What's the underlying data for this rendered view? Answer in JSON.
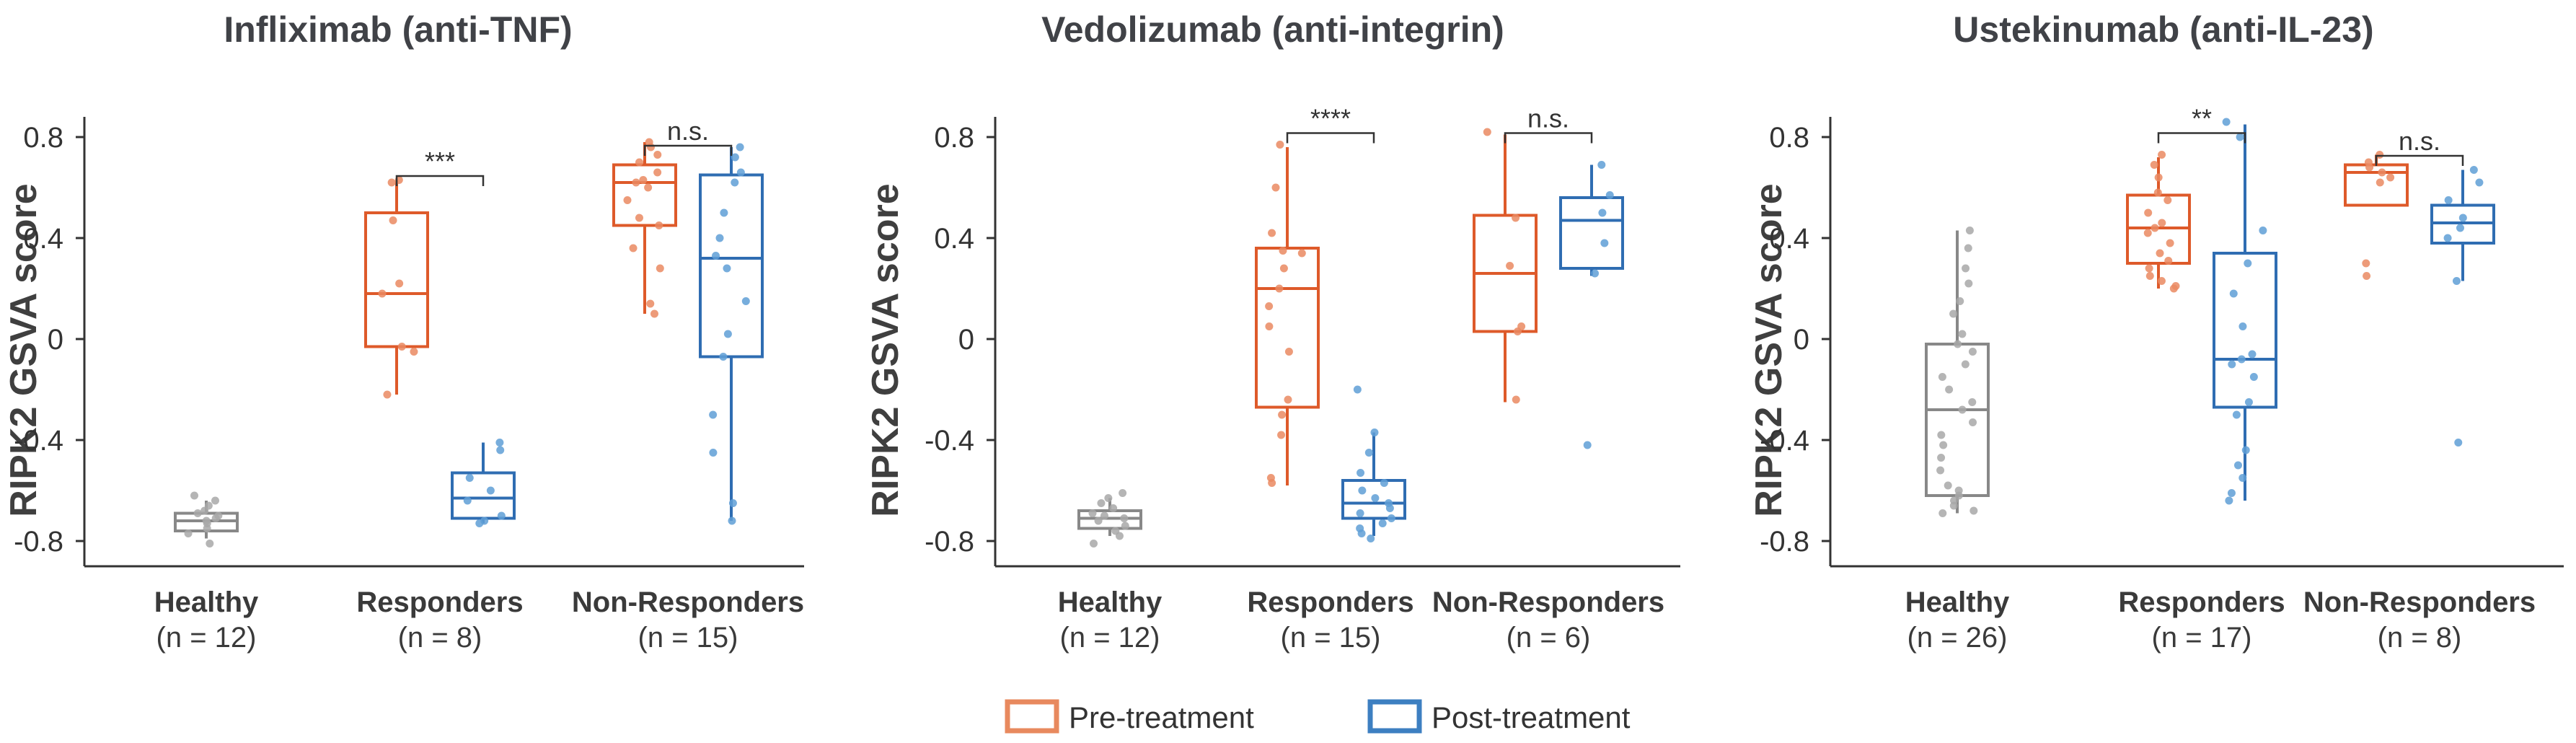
{
  "colors": {
    "healthy": "#888888",
    "pre": "#de5a2a",
    "post": "#2f6db2",
    "pre_dot": "#ea8a62",
    "post_dot": "#5f9fd6",
    "healthy_dot": "#a8a8a8",
    "axis": "#333333"
  },
  "legend": {
    "items": [
      {
        "label": "Pre-treatment",
        "color": "#e8895e"
      },
      {
        "label": "Post-treatment",
        "color": "#3d7fc1"
      }
    ]
  },
  "chart_data": [
    {
      "type": "box",
      "title": "Infliximab (anti-TNF)",
      "ylabel": "RIPK2 GSVA score",
      "ylim": [
        -0.9,
        0.88
      ],
      "yticks": [
        "-0.8",
        "-0.4",
        "0",
        "0.4",
        "0.8"
      ],
      "ytick_values": [
        -0.8,
        -0.4,
        0,
        0.4,
        0.8
      ],
      "categories": [
        {
          "name": "Healthy",
          "n": "(n = 12)"
        },
        {
          "name": "Responders",
          "n": "(n = 8)"
        },
        {
          "name": "Non-Responders",
          "n": "(n = 15)"
        }
      ],
      "boxes": [
        {
          "group": 0,
          "series": "healthy",
          "q1": -0.76,
          "median": -0.72,
          "q3": -0.69,
          "whislo": -0.79,
          "whishi": -0.64,
          "points": [
            -0.62,
            -0.64,
            -0.66,
            -0.68,
            -0.69,
            -0.7,
            -0.71,
            -0.72,
            -0.73,
            -0.75,
            -0.77,
            -0.81
          ]
        },
        {
          "group": 1,
          "series": "pre",
          "q1": -0.03,
          "median": 0.18,
          "q3": 0.5,
          "whislo": -0.22,
          "whishi": 0.63,
          "points": [
            0.63,
            0.62,
            0.47,
            0.22,
            0.18,
            -0.03,
            -0.05,
            -0.22
          ]
        },
        {
          "group": 1,
          "series": "post",
          "q1": -0.71,
          "median": -0.63,
          "q3": -0.53,
          "whislo": -0.73,
          "whishi": -0.41,
          "points": [
            -0.41,
            -0.44,
            -0.55,
            -0.6,
            -0.64,
            -0.7,
            -0.72,
            -0.73
          ]
        },
        {
          "group": 2,
          "series": "pre",
          "q1": 0.45,
          "median": 0.62,
          "q3": 0.69,
          "whislo": 0.1,
          "whishi": 0.78,
          "points": [
            0.78,
            0.76,
            0.73,
            0.7,
            0.66,
            0.63,
            0.62,
            0.6,
            0.55,
            0.48,
            0.45,
            0.36,
            0.28,
            0.14,
            0.1
          ]
        },
        {
          "group": 2,
          "series": "post",
          "q1": -0.07,
          "median": 0.32,
          "q3": 0.65,
          "whislo": -0.72,
          "whishi": 0.76,
          "points": [
            0.76,
            0.72,
            0.66,
            0.62,
            0.5,
            0.4,
            0.33,
            0.28,
            0.15,
            0.02,
            -0.07,
            -0.3,
            -0.45,
            -0.65,
            -0.72
          ]
        }
      ],
      "annotations": [
        {
          "text": "***",
          "group": 1,
          "y": 0.76
        },
        {
          "text": "n.s.",
          "group": 2,
          "y": 0.88
        }
      ]
    },
    {
      "type": "box",
      "title": "Vedolizumab (anti-integrin)",
      "ylabel": "RIPK2 GSVA score",
      "ylim": [
        -0.9,
        0.88
      ],
      "yticks": [
        "-0.8",
        "-0.4",
        "0",
        "0.4",
        "0.8"
      ],
      "ytick_values": [
        -0.8,
        -0.4,
        0,
        0.4,
        0.8
      ],
      "categories": [
        {
          "name": "Healthy",
          "n": "(n = 12)"
        },
        {
          "name": "Responders",
          "n": "(n = 15)"
        },
        {
          "name": "Non-Responders",
          "n": "(n = 6)"
        }
      ],
      "boxes": [
        {
          "group": 0,
          "series": "healthy",
          "q1": -0.75,
          "median": -0.71,
          "q3": -0.68,
          "whislo": -0.78,
          "whishi": -0.63,
          "points": [
            -0.61,
            -0.63,
            -0.65,
            -0.67,
            -0.69,
            -0.7,
            -0.71,
            -0.72,
            -0.74,
            -0.76,
            -0.78,
            -0.81
          ]
        },
        {
          "group": 1,
          "series": "pre",
          "q1": -0.27,
          "median": 0.2,
          "q3": 0.36,
          "whislo": -0.58,
          "whishi": 0.76,
          "points": [
            0.77,
            0.6,
            0.42,
            0.35,
            0.34,
            0.28,
            0.2,
            0.13,
            0.05,
            -0.05,
            -0.24,
            -0.3,
            -0.38,
            -0.55,
            -0.57
          ]
        },
        {
          "group": 1,
          "series": "post",
          "q1": -0.71,
          "median": -0.65,
          "q3": -0.56,
          "whislo": -0.78,
          "whishi": -0.37,
          "points": [
            -0.2,
            -0.37,
            -0.45,
            -0.53,
            -0.57,
            -0.6,
            -0.63,
            -0.65,
            -0.67,
            -0.69,
            -0.71,
            -0.73,
            -0.75,
            -0.77,
            -0.79
          ]
        },
        {
          "group": 2,
          "series": "pre",
          "q1": 0.03,
          "median": 0.26,
          "q3": 0.49,
          "whislo": -0.25,
          "whishi": 0.81,
          "points": [
            0.82,
            0.48,
            0.29,
            0.05,
            0.03,
            -0.24
          ]
        },
        {
          "group": 2,
          "series": "post",
          "q1": 0.28,
          "median": 0.47,
          "q3": 0.56,
          "whislo": 0.25,
          "whishi": 0.69,
          "points": [
            0.69,
            0.57,
            0.5,
            0.38,
            0.26,
            -0.42
          ]
        }
      ],
      "annotations": [
        {
          "text": "****",
          "group": 1,
          "y": 0.93
        },
        {
          "text": "n.s.",
          "group": 2,
          "y": 0.93
        }
      ]
    },
    {
      "type": "box",
      "title": "Ustekinumab (anti-IL-23)",
      "ylabel": "RIPK2 GSVA score",
      "ylim": [
        -0.9,
        0.88
      ],
      "yticks": [
        "-0.8",
        "-0.4",
        "0",
        "0.4",
        "0.8"
      ],
      "ytick_values": [
        -0.8,
        -0.4,
        0,
        0.4,
        0.8
      ],
      "categories": [
        {
          "name": "Healthy",
          "n": "(n = 26)"
        },
        {
          "name": "Responders",
          "n": "(n = 17)"
        },
        {
          "name": "Non-Responders",
          "n": "(n = 8)"
        }
      ],
      "boxes": [
        {
          "group": 0,
          "series": "healthy",
          "q1": -0.62,
          "median": -0.28,
          "q3": -0.02,
          "whislo": -0.69,
          "whishi": 0.43,
          "points": [
            0.43,
            0.36,
            0.28,
            0.22,
            0.15,
            0.1,
            0.02,
            -0.02,
            -0.05,
            -0.1,
            -0.15,
            -0.2,
            -0.25,
            -0.28,
            -0.33,
            -0.38,
            -0.42,
            -0.47,
            -0.52,
            -0.58,
            -0.6,
            -0.62,
            -0.64,
            -0.66,
            -0.68,
            -0.69
          ]
        },
        {
          "group": 1,
          "series": "pre",
          "q1": 0.3,
          "median": 0.44,
          "q3": 0.57,
          "whislo": 0.2,
          "whishi": 0.72,
          "points": [
            0.73,
            0.69,
            0.64,
            0.58,
            0.55,
            0.5,
            0.46,
            0.44,
            0.42,
            0.38,
            0.34,
            0.31,
            0.28,
            0.25,
            0.23,
            0.21,
            0.2
          ]
        },
        {
          "group": 1,
          "series": "post",
          "q1": -0.27,
          "median": -0.08,
          "q3": 0.34,
          "whislo": -0.64,
          "whishi": 0.85,
          "points": [
            0.86,
            0.8,
            0.43,
            0.3,
            0.18,
            0.05,
            -0.06,
            -0.08,
            -0.1,
            -0.15,
            -0.25,
            -0.3,
            -0.44,
            -0.5,
            -0.55,
            -0.61,
            -0.64
          ]
        },
        {
          "group": 2,
          "series": "pre",
          "q1": 0.53,
          "median": 0.66,
          "q3": 0.69,
          "whislo": 0.53,
          "whishi": 0.73,
          "points": [
            0.73,
            0.7,
            0.68,
            0.66,
            0.64,
            0.62,
            0.3,
            0.25
          ]
        },
        {
          "group": 2,
          "series": "post",
          "q1": 0.38,
          "median": 0.46,
          "q3": 0.53,
          "whislo": 0.23,
          "whishi": 0.67,
          "points": [
            0.67,
            0.62,
            0.55,
            0.48,
            0.44,
            0.4,
            0.23,
            -0.41
          ]
        }
      ],
      "annotations": [
        {
          "text": "**",
          "group": 1,
          "y": 0.93
        },
        {
          "text": "n.s.",
          "group": 2,
          "y": 0.84
        }
      ]
    }
  ]
}
